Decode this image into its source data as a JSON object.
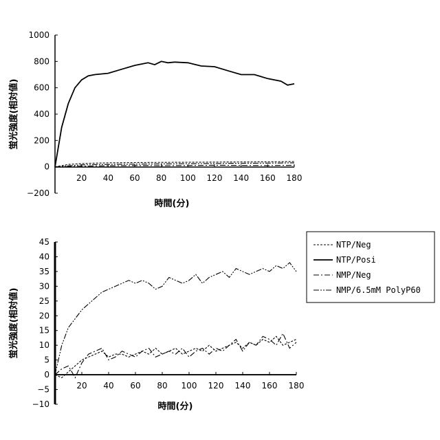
{
  "chart_data": [
    {
      "type": "line",
      "xlabel": "時間(分)",
      "ylabel": "蛍光強度(相対値)",
      "xlim": [
        0,
        180
      ],
      "ylim": [
        -200,
        1000
      ],
      "xticks": [
        "20",
        "40",
        "60",
        "80",
        "100",
        "120",
        "140",
        "160",
        "180"
      ],
      "yticks": [
        "1000",
        "800",
        "600",
        "400",
        "200",
        "0",
        "−200"
      ],
      "series": [
        {
          "name": "NTP/Neg",
          "style": "dashed",
          "x": [
            0,
            10,
            20,
            30,
            40,
            60,
            80,
            100,
            120,
            140,
            160,
            180
          ],
          "y": [
            0,
            18,
            25,
            28,
            30,
            32,
            34,
            35,
            36,
            37,
            38,
            40
          ]
        },
        {
          "name": "NTP/Posi",
          "style": "solid",
          "x": [
            0,
            5,
            10,
            15,
            20,
            25,
            30,
            40,
            50,
            60,
            70,
            75,
            80,
            85,
            90,
            100,
            110,
            120,
            130,
            140,
            150,
            160,
            170,
            175,
            180
          ],
          "y": [
            0,
            300,
            480,
            600,
            660,
            690,
            700,
            710,
            740,
            770,
            790,
            775,
            800,
            790,
            795,
            790,
            765,
            760,
            730,
            700,
            700,
            670,
            650,
            620,
            630
          ]
        },
        {
          "name": "NMP/Neg",
          "style": "dashdot",
          "x": [
            0,
            20,
            40,
            60,
            80,
            100,
            120,
            140,
            160,
            180
          ],
          "y": [
            0,
            5,
            8,
            10,
            9,
            10,
            12,
            11,
            10,
            12
          ]
        },
        {
          "name": "NMP/6.5mM PolyP60",
          "style": "dashdotdot",
          "x": [
            0,
            20,
            40,
            60,
            80,
            100,
            120,
            140,
            160,
            180
          ],
          "y": [
            0,
            15,
            18,
            20,
            22,
            24,
            25,
            27,
            28,
            30
          ]
        }
      ]
    },
    {
      "type": "line",
      "xlabel": "時間(分)",
      "ylabel": "蛍光強度(相対値)",
      "xlim": [
        0,
        180
      ],
      "ylim": [
        -10,
        45
      ],
      "xticks": [
        "20",
        "40",
        "60",
        "80",
        "100",
        "120",
        "140",
        "160",
        "180"
      ],
      "yticks": [
        "45",
        "40",
        "35",
        "30",
        "25",
        "20",
        "15",
        "10",
        "5",
        "0",
        "−5",
        "−10"
      ],
      "legend_position": "right",
      "series": [
        {
          "name": "NTP/Neg",
          "style": "dashed",
          "x": [
            0,
            5,
            10,
            15,
            20,
            25,
            30,
            35,
            40,
            45,
            50,
            55,
            60,
            65,
            70,
            75,
            80,
            85,
            90,
            95,
            100,
            105,
            110,
            115,
            120,
            125,
            130,
            135,
            140,
            145,
            150,
            155,
            160,
            165,
            170,
            175,
            180
          ],
          "y": [
            0,
            -1,
            1,
            3,
            5,
            6,
            7,
            8,
            6,
            7,
            7,
            6,
            7,
            8,
            7,
            9,
            7,
            8,
            9,
            7,
            8,
            9,
            8,
            10,
            8,
            9,
            10,
            11,
            9,
            11,
            10,
            12,
            11,
            13,
            10,
            11,
            12
          ]
        },
        {
          "name": "NTP/Posi",
          "style": "solid",
          "x": [
            0,
            180
          ],
          "y": [
            0,
            0
          ]
        },
        {
          "name": "NMP/Neg",
          "style": "dashdot",
          "x": [
            0,
            5,
            10,
            15,
            20,
            25,
            30,
            35,
            40,
            45,
            50,
            55,
            60,
            65,
            70,
            75,
            80,
            85,
            90,
            95,
            100,
            105,
            110,
            115,
            120,
            125,
            130,
            135,
            140,
            145,
            150,
            155,
            160,
            165,
            170,
            175,
            180
          ],
          "y": [
            0,
            2,
            3,
            -1,
            4,
            7,
            8,
            9,
            5,
            6,
            8,
            7,
            6,
            8,
            9,
            6,
            7,
            8,
            7,
            9,
            6,
            8,
            9,
            7,
            9,
            8,
            10,
            12,
            8,
            11,
            10,
            13,
            12,
            10,
            14,
            9,
            11
          ]
        },
        {
          "name": "NMP/6.5mM PolyP60",
          "style": "dashdotdot",
          "x": [
            0,
            5,
            10,
            15,
            20,
            25,
            30,
            35,
            40,
            45,
            50,
            55,
            60,
            65,
            70,
            75,
            80,
            85,
            90,
            95,
            100,
            105,
            110,
            115,
            120,
            125,
            130,
            135,
            140,
            145,
            150,
            155,
            160,
            165,
            170,
            175,
            180
          ],
          "y": [
            0,
            10,
            16,
            19,
            22,
            24,
            26,
            28,
            29,
            30,
            31,
            32,
            31,
            32,
            31,
            29,
            30,
            33,
            32,
            31,
            32,
            34,
            31,
            33,
            34,
            35,
            33,
            36,
            35,
            34,
            35,
            36,
            35,
            37,
            36,
            38,
            35
          ]
        }
      ]
    }
  ]
}
